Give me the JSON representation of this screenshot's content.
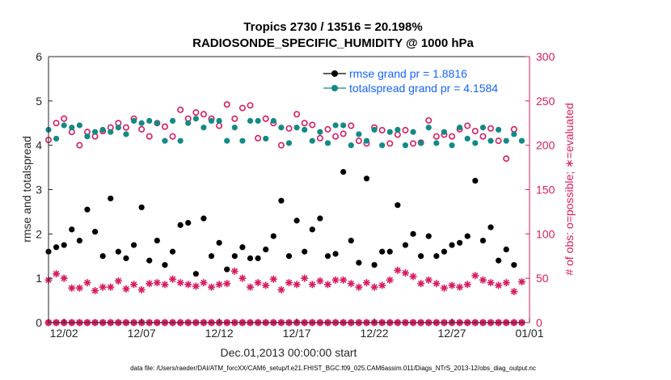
{
  "chart_data": {
    "type": "scatter",
    "title": "Tropics 2730 / 13516 = 20.198%",
    "subtitle": "RADIOSONDE_SPECIFIC_HUMIDITY @ 1000 hPa",
    "xlabel": "Dec.01,2013 00:00:00 start",
    "ylabel_left": "rmse and totalspread",
    "ylabel_right": "# of obs: o=possible; ∗=evaluated",
    "footnote": "data file: /Users/raeder/DAI/ATM_forcXX/CAM6_setup/f.e21.FHIST_BGC.f09_025.CAM6assim.011/Diags_NTrS_2013-12/obs_diag_output.nc",
    "xlim": [
      0.5,
      31.5
    ],
    "ylim_left": [
      0,
      6
    ],
    "ylim_right": [
      0,
      300
    ],
    "left_ticks": [
      "0",
      "1",
      "2",
      "3",
      "4",
      "5",
      "6"
    ],
    "right_ticks": [
      "0",
      "50",
      "100",
      "150",
      "200",
      "250",
      "300"
    ],
    "x_ticks": [
      {
        "x": 1.5,
        "label": "12/02"
      },
      {
        "x": 6.5,
        "label": "12/07"
      },
      {
        "x": 11.5,
        "label": "12/12"
      },
      {
        "x": 16.5,
        "label": "12/17"
      },
      {
        "x": 21.5,
        "label": "12/22"
      },
      {
        "x": 26.5,
        "label": "12/27"
      },
      {
        "x": 31.5,
        "label": "01/01"
      }
    ],
    "x": [
      0.5,
      1.0,
      1.5,
      2.0,
      2.5,
      3.0,
      3.5,
      4.0,
      4.5,
      5.0,
      5.5,
      6.0,
      6.5,
      7.0,
      7.5,
      8.0,
      8.5,
      9.0,
      9.5,
      10.0,
      10.5,
      11.0,
      11.5,
      12.0,
      12.5,
      13.0,
      13.5,
      14.0,
      14.5,
      15.0,
      15.5,
      16.0,
      16.5,
      17.0,
      17.5,
      18.0,
      18.5,
      19.0,
      19.5,
      20.0,
      20.5,
      21.0,
      21.5,
      22.0,
      22.5,
      23.0,
      23.5,
      24.0,
      24.5,
      25.0,
      25.5,
      26.0,
      26.5,
      27.0,
      27.5,
      28.0,
      28.5,
      29.0,
      29.5,
      30.0,
      30.5,
      31.0
    ],
    "series": [
      {
        "name": "rmse",
        "legend": "rmse grand pr = 1.8816",
        "axis": "left",
        "color": "#000000",
        "marker": "dot-line",
        "values": [
          1.6,
          1.7,
          1.75,
          2.1,
          1.85,
          2.55,
          2.05,
          1.5,
          2.8,
          1.6,
          1.45,
          1.75,
          2.6,
          1.4,
          1.85,
          1.3,
          1.6,
          2.2,
          2.25,
          1.1,
          2.35,
          1.5,
          1.8,
          1.2,
          1.5,
          1.7,
          1.45,
          1.45,
          1.65,
          1.95,
          2.75,
          1.5,
          2.3,
          1.6,
          2.1,
          2.35,
          1.5,
          1.55,
          3.4,
          1.85,
          1.35,
          3.25,
          1.3,
          1.6,
          1.6,
          2.65,
          1.75,
          2.0,
          1.5,
          1.95,
          1.5,
          1.6,
          1.75,
          1.8,
          1.95,
          3.2,
          1.85,
          2.15,
          1.4,
          1.65,
          1.3,
          null
        ]
      },
      {
        "name": "totalspread",
        "legend": "totalspread grand pr = 4.1584",
        "axis": "left",
        "color": "#138a87",
        "marker": "dot-line",
        "values": [
          4.35,
          4.15,
          4.45,
          4.4,
          4.45,
          4.2,
          4.3,
          4.35,
          4.3,
          4.4,
          4.25,
          4.55,
          4.5,
          4.55,
          4.5,
          4.1,
          4.55,
          4.1,
          4.5,
          4.6,
          4.4,
          4.55,
          4.55,
          4.1,
          4.4,
          4.1,
          4.55,
          4.55,
          4.15,
          4.55,
          4.4,
          4.05,
          4.4,
          4.35,
          4.1,
          4.3,
          4.05,
          4.45,
          4.45,
          4.0,
          4.25,
          4.1,
          4.35,
          4.0,
          4.3,
          4.35,
          4.0,
          4.3,
          4.05,
          4.4,
          4.05,
          4.3,
          4.0,
          4.4,
          4.15,
          4.05,
          4.4,
          4.1,
          4.35,
          4.1,
          4.25,
          4.1
        ]
      },
      {
        "name": "# obs possible",
        "axis": "right",
        "color": "#d81b60",
        "marker": "open-circle",
        "values": [
          206,
          225,
          230,
          215,
          200,
          215,
          210,
          216,
          220,
          225,
          220,
          230,
          218,
          210,
          225,
          221,
          210,
          240,
          230,
          237,
          235,
          230,
          222,
          246,
          230,
          242,
          245,
          208,
          230,
          225,
          200,
          219,
          235,
          225,
          223,
          208,
          218,
          210,
          213,
          222,
          205,
          202,
          220,
          217,
          202,
          212,
          217,
          202,
          203,
          228,
          210,
          212,
          210,
          218,
          222,
          216,
          210,
          219,
          205,
          185,
          218,
          null
        ]
      },
      {
        "name": "# obs evaluated",
        "axis": "right",
        "color": "#d81b60",
        "marker": "asterisk",
        "values": [
          48,
          55,
          50,
          39,
          39,
          45,
          36,
          40,
          40,
          47,
          38,
          43,
          37,
          44,
          45,
          43,
          49,
          45,
          43,
          41,
          45,
          40,
          43,
          44,
          58,
          50,
          40,
          45,
          42,
          49,
          37,
          45,
          43,
          50,
          43,
          47,
          43,
          48,
          48,
          44,
          40,
          45,
          40,
          42,
          48,
          59,
          56,
          52,
          44,
          48,
          44,
          39,
          42,
          40,
          43,
          53,
          48,
          45,
          42,
          45,
          35,
          46
        ]
      },
      {
        "name": "# obs zero row",
        "axis": "right",
        "color": "#d81b60",
        "marker": "mixed-baseline",
        "values": [
          0,
          0,
          0,
          0,
          0,
          0,
          0,
          0,
          0,
          0,
          0,
          0,
          0,
          0,
          0,
          0,
          0,
          0,
          0,
          0,
          0,
          0,
          0,
          0,
          0,
          0,
          0,
          0,
          0,
          0,
          0,
          0,
          0,
          0,
          0,
          0,
          0,
          0,
          0,
          0,
          0,
          0,
          0,
          0,
          0,
          0,
          0,
          0,
          0,
          0,
          0,
          0,
          0,
          0,
          0,
          0,
          0,
          0,
          0,
          0,
          0,
          0
        ]
      }
    ]
  }
}
